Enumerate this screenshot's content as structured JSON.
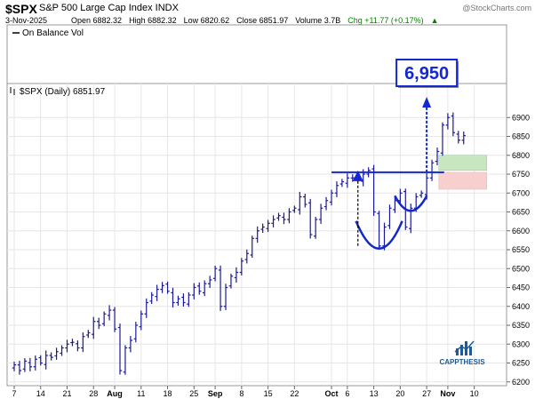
{
  "header": {
    "symbol": "$SPX",
    "name": "S&P 500 Large Cap Index  INDX",
    "watermark": "@StockCharts.com",
    "date": "3-Nov-2025",
    "open_label": "Open 6882.32",
    "high_label": "High 6882.32",
    "low_label": "Low 6820.62",
    "close_label": "Close 6851.97",
    "volume_label": "Volume 3.7B",
    "chg_label": "Chg +11.77 (+0.17%)",
    "chg_arrow": "▲"
  },
  "indicator": {
    "label": "On Balance Vol"
  },
  "chart_data": {
    "type": "ohlc",
    "legend": "$SPX (Daily) 6851.97",
    "ylim": [
      6190,
      6990
    ],
    "y_ticks": [
      6200,
      6250,
      6300,
      6350,
      6400,
      6450,
      6500,
      6550,
      6600,
      6650,
      6700,
      6750,
      6800,
      6850,
      6900
    ],
    "x_ticks": [
      {
        "label": "7",
        "index": 0,
        "bold": false
      },
      {
        "label": "14",
        "index": 5,
        "bold": false
      },
      {
        "label": "21",
        "index": 10,
        "bold": false
      },
      {
        "label": "28",
        "index": 15,
        "bold": false
      },
      {
        "label": "Aug",
        "index": 19,
        "bold": true
      },
      {
        "label": "11",
        "index": 24,
        "bold": false
      },
      {
        "label": "18",
        "index": 29,
        "bold": false
      },
      {
        "label": "25",
        "index": 34,
        "bold": false
      },
      {
        "label": "Sep",
        "index": 38,
        "bold": true
      },
      {
        "label": "8",
        "index": 43,
        "bold": false
      },
      {
        "label": "15",
        "index": 48,
        "bold": false
      },
      {
        "label": "22",
        "index": 53,
        "bold": false
      },
      {
        "label": "Oct",
        "index": 60,
        "bold": true
      },
      {
        "label": "6",
        "index": 63,
        "bold": false
      },
      {
        "label": "13",
        "index": 68,
        "bold": false
      },
      {
        "label": "20",
        "index": 73,
        "bold": false
      },
      {
        "label": "27",
        "index": 78,
        "bold": false
      },
      {
        "label": "Nov",
        "index": 82,
        "bold": true
      },
      {
        "label": "10",
        "index": 87,
        "bold": false
      }
    ],
    "closes": [
      6245,
      6230,
      6255,
      6240,
      6260,
      6250,
      6270,
      6265,
      6280,
      6290,
      6300,
      6305,
      6290,
      6320,
      6330,
      6360,
      6350,
      6380,
      6390,
      6340,
      6230,
      6290,
      6310,
      6350,
      6380,
      6410,
      6430,
      6445,
      6455,
      6440,
      6410,
      6420,
      6410,
      6430,
      6450,
      6440,
      6460,
      6470,
      6500,
      6400,
      6450,
      6480,
      6490,
      6520,
      6540,
      6580,
      6600,
      6610,
      6620,
      6630,
      6640,
      6630,
      6650,
      6660,
      6690,
      6670,
      6590,
      6630,
      6660,
      6680,
      6700,
      6720,
      6730,
      6740,
      6740,
      6735,
      6750,
      6760,
      6650,
      6560,
      6610,
      6660,
      6680,
      6700,
      6610,
      6660,
      6690,
      6700,
      6740,
      6780,
      6810,
      6880,
      6900,
      6860,
      6840,
      6851.97
    ],
    "annotations": {
      "target_label": "6,950",
      "target_value": 6950,
      "resistance_value": 6755,
      "green_zone": [
        6760,
        6800
      ],
      "red_zone": [
        6710,
        6755
      ]
    },
    "logo_text": "CAPPTHESIS"
  },
  "colors": {
    "bars": "#1a1a99",
    "grid": "#e6e6e6",
    "resistance": "#1428c8",
    "arrow": "#1428d2",
    "green_zone": "#c8e6c0",
    "red_zone": "#f7cfcf",
    "target_border": "#1428d2",
    "logo": "#1e5a96"
  }
}
